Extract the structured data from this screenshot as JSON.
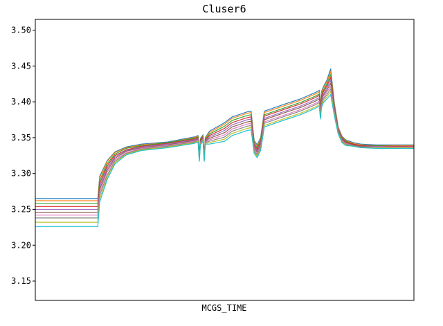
{
  "chart_data": {
    "type": "line",
    "title": "Cluser6",
    "xlabel": "MCGS_TIME",
    "ylabel": "",
    "ylim": [
      3.123,
      3.515
    ],
    "yticks": [
      3.15,
      3.2,
      3.25,
      3.3,
      3.35,
      3.4,
      3.45,
      3.5
    ],
    "ytick_labels": [
      "3.15",
      "3.20",
      "3.25",
      "3.30",
      "3.35",
      "3.40",
      "3.45",
      "3.50"
    ],
    "xlim": [
      0,
      100
    ],
    "grid": false,
    "legend": "none",
    "colors": [
      "#1f77b4",
      "#ff7f0e",
      "#2ca02c",
      "#d62728",
      "#9467bd",
      "#8c564b",
      "#e377c2",
      "#7f7f7f",
      "#bcbd22",
      "#17becf"
    ],
    "x": [
      0,
      16.5,
      17.0,
      19,
      21,
      24,
      28,
      35,
      42,
      43,
      43.3,
      43.6,
      44.3,
      44.6,
      44.9,
      46,
      50,
      52,
      56,
      57,
      57.8,
      58.6,
      59.5,
      60.5,
      66,
      70,
      74,
      75,
      75.3,
      75.6,
      76,
      77,
      78,
      79,
      80,
      81,
      82,
      84,
      86,
      90,
      95,
      100
    ],
    "series": [
      {
        "values": [
          3.265,
          3.265,
          3.296,
          3.318,
          3.33,
          3.337,
          3.341,
          3.344,
          3.351,
          3.353,
          3.326,
          3.349,
          3.354,
          3.326,
          3.35,
          3.359,
          3.371,
          3.379,
          3.386,
          3.387,
          3.346,
          3.34,
          3.35,
          3.387,
          3.397,
          3.404,
          3.413,
          3.416,
          3.394,
          3.414,
          3.42,
          3.43,
          3.446,
          3.398,
          3.365,
          3.352,
          3.347,
          3.343,
          3.341,
          3.34,
          3.34,
          3.34
        ]
      },
      {
        "values": [
          3.262,
          3.262,
          3.294,
          3.317,
          3.329,
          3.336,
          3.34,
          3.343,
          3.35,
          3.352,
          3.325,
          3.348,
          3.353,
          3.325,
          3.349,
          3.357,
          3.369,
          3.377,
          3.384,
          3.385,
          3.344,
          3.338,
          3.348,
          3.385,
          3.395,
          3.402,
          3.411,
          3.414,
          3.392,
          3.412,
          3.418,
          3.428,
          3.442,
          3.396,
          3.364,
          3.351,
          3.346,
          3.342,
          3.34,
          3.339,
          3.339,
          3.339
        ]
      },
      {
        "values": [
          3.258,
          3.258,
          3.29,
          3.314,
          3.327,
          3.335,
          3.339,
          3.343,
          3.349,
          3.351,
          3.324,
          3.347,
          3.352,
          3.324,
          3.348,
          3.355,
          3.366,
          3.374,
          3.381,
          3.382,
          3.342,
          3.336,
          3.346,
          3.382,
          3.392,
          3.399,
          3.408,
          3.411,
          3.39,
          3.409,
          3.415,
          3.425,
          3.438,
          3.394,
          3.362,
          3.35,
          3.345,
          3.341,
          3.339,
          3.339,
          3.338,
          3.338
        ]
      },
      {
        "values": [
          3.254,
          3.254,
          3.286,
          3.311,
          3.325,
          3.333,
          3.338,
          3.342,
          3.348,
          3.35,
          3.323,
          3.346,
          3.351,
          3.323,
          3.347,
          3.353,
          3.363,
          3.371,
          3.378,
          3.379,
          3.34,
          3.334,
          3.344,
          3.38,
          3.39,
          3.397,
          3.406,
          3.409,
          3.388,
          3.407,
          3.413,
          3.422,
          3.434,
          3.392,
          3.361,
          3.349,
          3.344,
          3.341,
          3.339,
          3.338,
          3.338,
          3.338
        ]
      },
      {
        "values": [
          3.25,
          3.25,
          3.282,
          3.308,
          3.323,
          3.332,
          3.337,
          3.341,
          3.347,
          3.349,
          3.322,
          3.345,
          3.35,
          3.322,
          3.346,
          3.351,
          3.36,
          3.368,
          3.375,
          3.376,
          3.338,
          3.332,
          3.342,
          3.377,
          3.387,
          3.394,
          3.403,
          3.406,
          3.386,
          3.404,
          3.41,
          3.419,
          3.43,
          3.39,
          3.36,
          3.348,
          3.343,
          3.34,
          3.338,
          3.338,
          3.337,
          3.337
        ]
      },
      {
        "values": [
          3.246,
          3.246,
          3.278,
          3.305,
          3.321,
          3.331,
          3.336,
          3.34,
          3.346,
          3.348,
          3.321,
          3.344,
          3.349,
          3.321,
          3.345,
          3.349,
          3.357,
          3.365,
          3.372,
          3.373,
          3.336,
          3.33,
          3.34,
          3.375,
          3.385,
          3.392,
          3.401,
          3.404,
          3.384,
          3.402,
          3.408,
          3.416,
          3.426,
          3.388,
          3.359,
          3.347,
          3.343,
          3.34,
          3.338,
          3.337,
          3.337,
          3.337
        ]
      },
      {
        "values": [
          3.242,
          3.242,
          3.274,
          3.302,
          3.319,
          3.329,
          3.335,
          3.339,
          3.345,
          3.347,
          3.32,
          3.343,
          3.348,
          3.32,
          3.344,
          3.347,
          3.354,
          3.362,
          3.369,
          3.37,
          3.334,
          3.328,
          3.338,
          3.372,
          3.382,
          3.389,
          3.398,
          3.401,
          3.382,
          3.399,
          3.405,
          3.413,
          3.422,
          3.386,
          3.358,
          3.346,
          3.342,
          3.339,
          3.337,
          3.337,
          3.337,
          3.337
        ]
      },
      {
        "values": [
          3.238,
          3.238,
          3.27,
          3.298,
          3.317,
          3.328,
          3.334,
          3.338,
          3.344,
          3.346,
          3.319,
          3.342,
          3.347,
          3.319,
          3.343,
          3.345,
          3.351,
          3.359,
          3.366,
          3.367,
          3.332,
          3.326,
          3.336,
          3.37,
          3.38,
          3.387,
          3.396,
          3.399,
          3.38,
          3.397,
          3.403,
          3.41,
          3.418,
          3.384,
          3.357,
          3.345,
          3.341,
          3.339,
          3.337,
          3.336,
          3.336,
          3.336
        ]
      },
      {
        "values": [
          3.232,
          3.232,
          3.265,
          3.295,
          3.315,
          3.327,
          3.333,
          3.337,
          3.343,
          3.345,
          3.318,
          3.341,
          3.346,
          3.318,
          3.342,
          3.343,
          3.348,
          3.356,
          3.363,
          3.364,
          3.33,
          3.324,
          3.334,
          3.367,
          3.377,
          3.384,
          3.393,
          3.396,
          3.378,
          3.394,
          3.4,
          3.407,
          3.414,
          3.382,
          3.356,
          3.344,
          3.34,
          3.338,
          3.336,
          3.336,
          3.336,
          3.336
        ]
      },
      {
        "values": [
          3.226,
          3.226,
          3.26,
          3.292,
          3.313,
          3.326,
          3.332,
          3.336,
          3.342,
          3.344,
          3.317,
          3.34,
          3.345,
          3.317,
          3.341,
          3.341,
          3.345,
          3.353,
          3.36,
          3.361,
          3.328,
          3.322,
          3.332,
          3.365,
          3.375,
          3.382,
          3.391,
          3.394,
          3.376,
          3.392,
          3.398,
          3.404,
          3.41,
          3.38,
          3.355,
          3.343,
          3.339,
          3.338,
          3.336,
          3.335,
          3.335,
          3.335
        ]
      }
    ]
  }
}
